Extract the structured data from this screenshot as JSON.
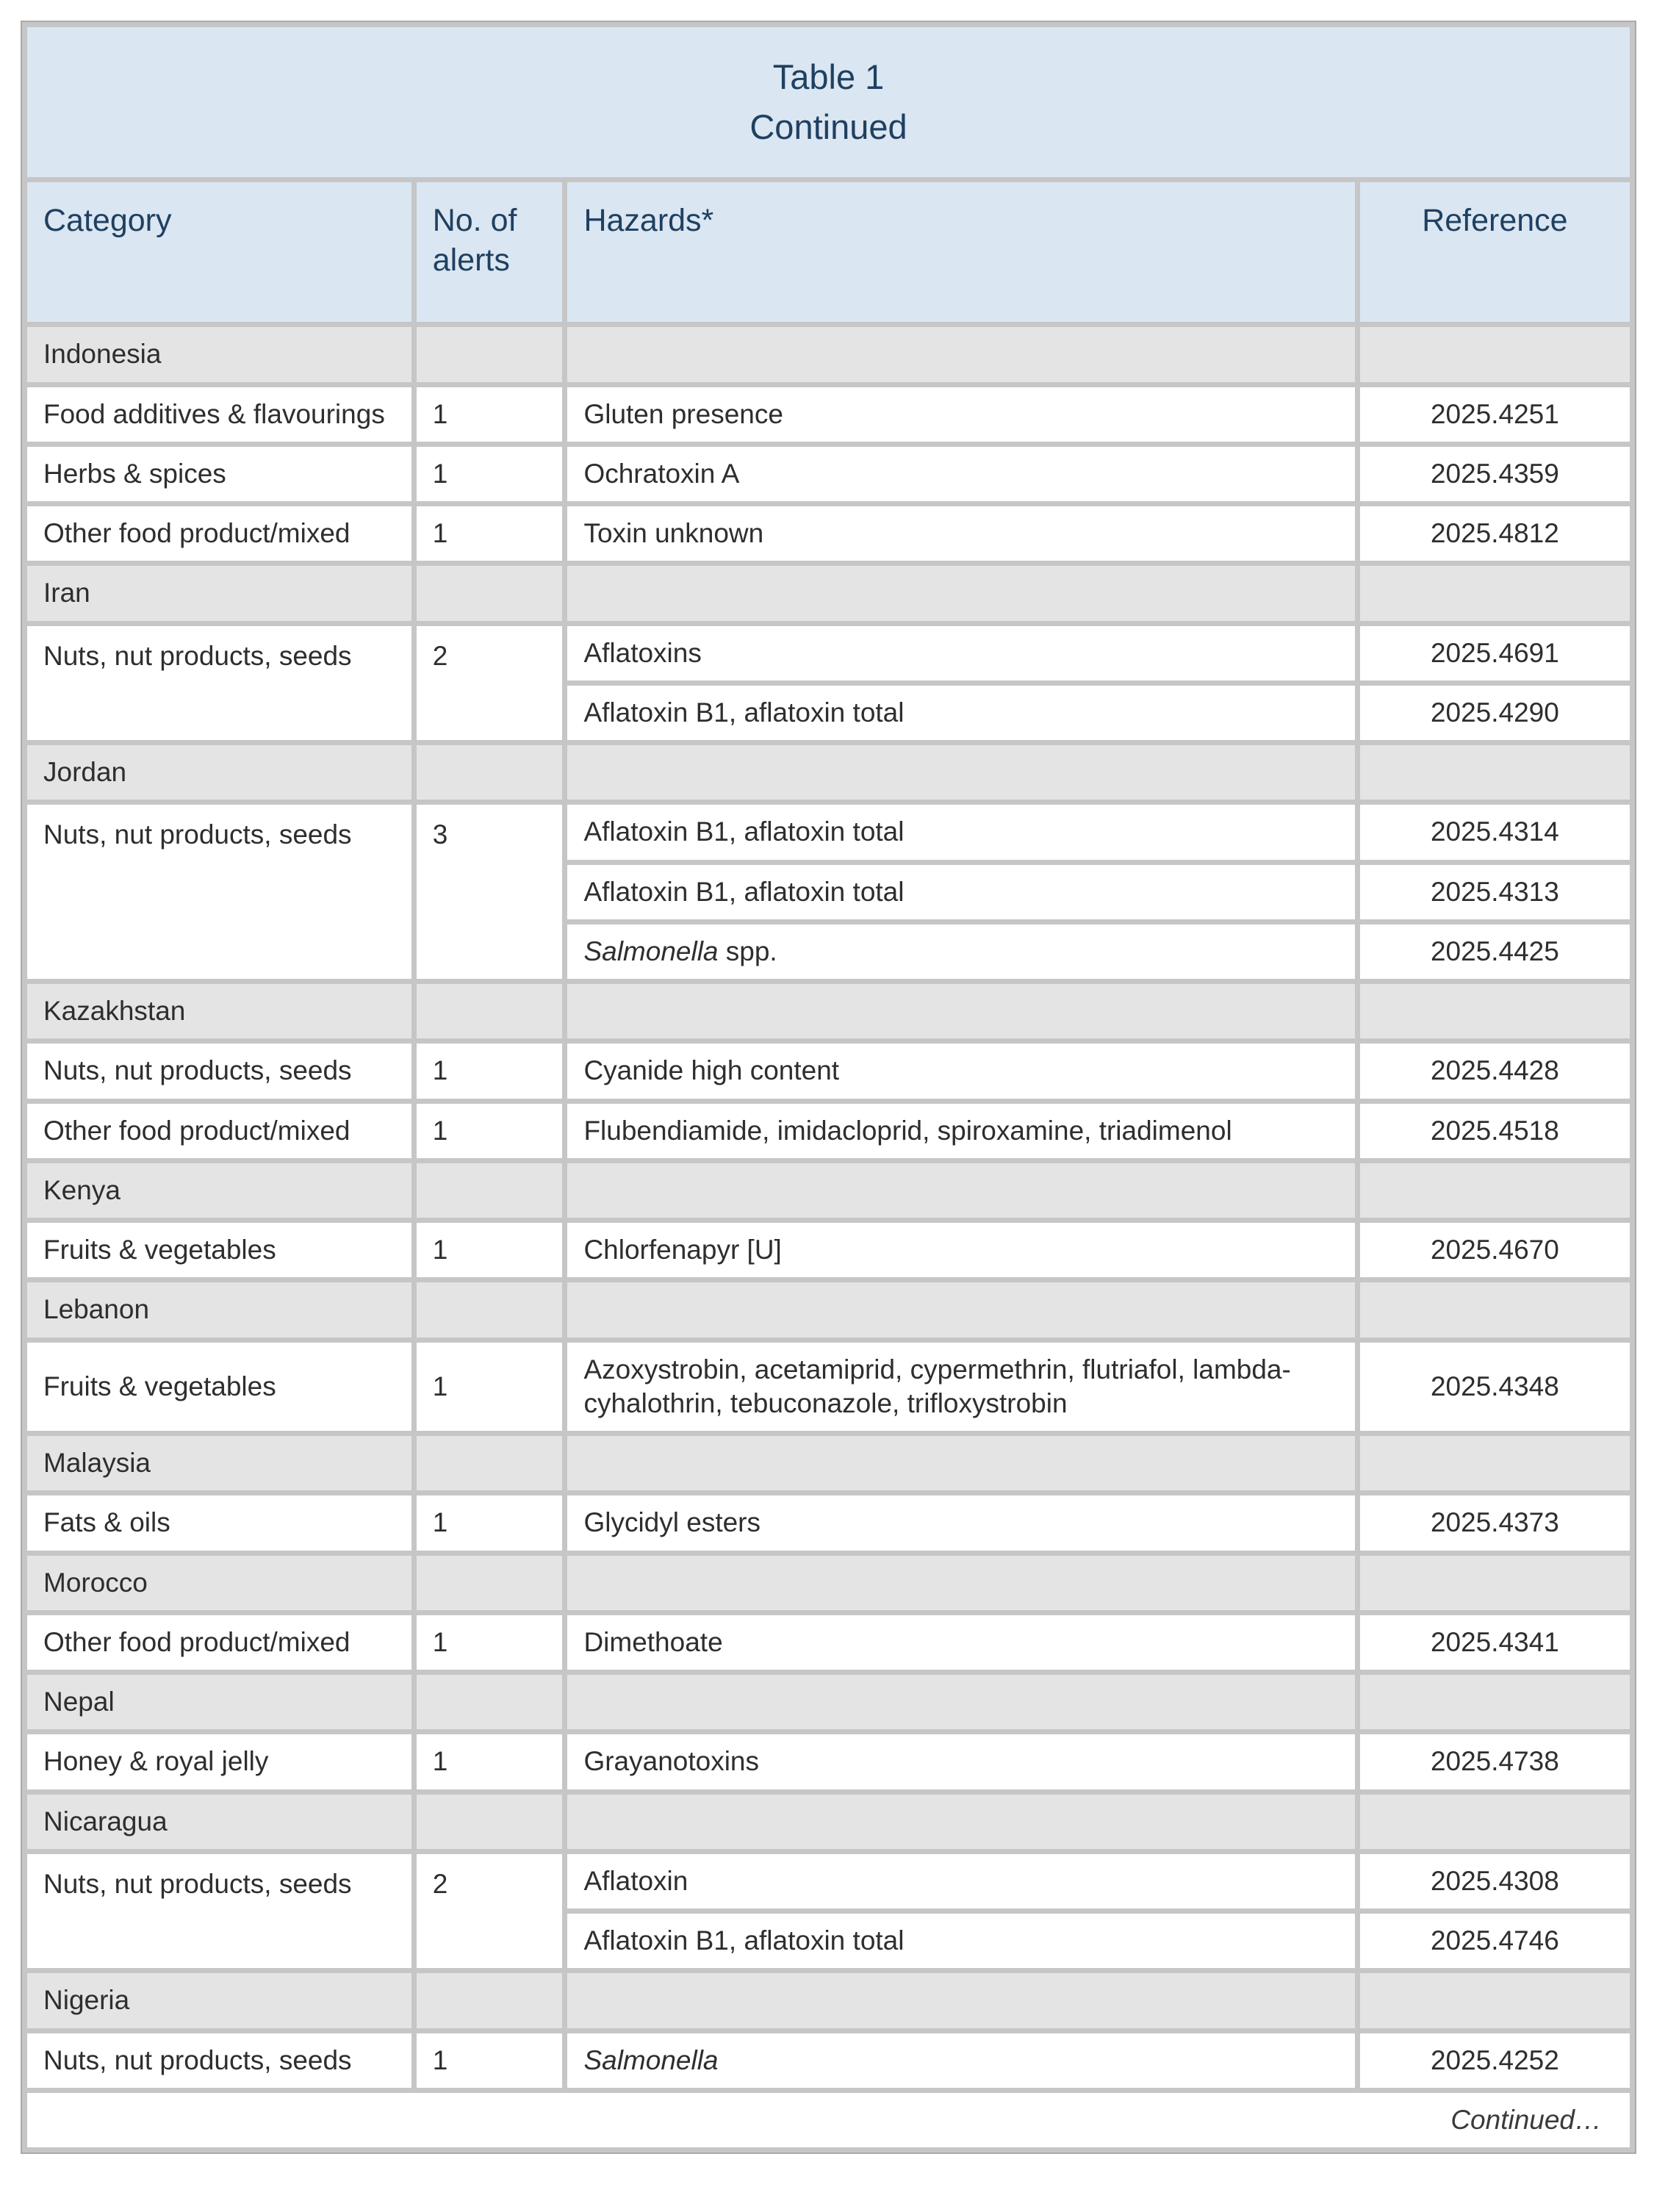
{
  "colors": {
    "accent_bg": "#dae6f2",
    "accent_text": "#1f4060",
    "section_bg": "#e4e4e4",
    "grid": "#c6c6c6",
    "body_text": "#2e2e2e"
  },
  "table": {
    "title_lines": [
      "Table 1",
      "Continued"
    ],
    "columns": [
      "Category",
      "No. of alerts",
      "Hazards*",
      "Reference"
    ],
    "footer": "Continued…",
    "groups": [
      {
        "country": "Indonesia",
        "entries": [
          {
            "category": "Food additives & flavourings",
            "alerts": "1",
            "hazards": [
              {
                "segments": [
                  {
                    "t": "Gluten presence",
                    "i": false
                  }
                ],
                "ref": "2025.4251"
              }
            ]
          },
          {
            "category": "Herbs & spices",
            "alerts": "1",
            "hazards": [
              {
                "segments": [
                  {
                    "t": "Ochratoxin A",
                    "i": false
                  }
                ],
                "ref": "2025.4359"
              }
            ]
          },
          {
            "category": "Other food product/mixed",
            "alerts": "1",
            "hazards": [
              {
                "segments": [
                  {
                    "t": "Toxin unknown",
                    "i": false
                  }
                ],
                "ref": "2025.4812"
              }
            ]
          }
        ]
      },
      {
        "country": "Iran",
        "entries": [
          {
            "category": "Nuts, nut products, seeds",
            "alerts": "2",
            "hazards": [
              {
                "segments": [
                  {
                    "t": "Aflatoxins",
                    "i": false
                  }
                ],
                "ref": "2025.4691"
              },
              {
                "segments": [
                  {
                    "t": "Aflatoxin B1, aflatoxin total",
                    "i": false
                  }
                ],
                "ref": "2025.4290"
              }
            ]
          }
        ]
      },
      {
        "country": "Jordan",
        "entries": [
          {
            "category": "Nuts, nut products, seeds",
            "alerts": "3",
            "hazards": [
              {
                "segments": [
                  {
                    "t": "Aflatoxin B1, aflatoxin total",
                    "i": false
                  }
                ],
                "ref": "2025.4314"
              },
              {
                "segments": [
                  {
                    "t": "Aflatoxin B1, aflatoxin total",
                    "i": false
                  }
                ],
                "ref": "2025.4313"
              },
              {
                "segments": [
                  {
                    "t": "Salmonella",
                    "i": true
                  },
                  {
                    "t": " spp.",
                    "i": false
                  }
                ],
                "ref": "2025.4425"
              }
            ]
          }
        ]
      },
      {
        "country": "Kazakhstan",
        "entries": [
          {
            "category": "Nuts, nut products, seeds",
            "alerts": "1",
            "hazards": [
              {
                "segments": [
                  {
                    "t": "Cyanide high content",
                    "i": false
                  }
                ],
                "ref": "2025.4428"
              }
            ]
          },
          {
            "category": "Other food product/mixed",
            "alerts": "1",
            "hazards": [
              {
                "segments": [
                  {
                    "t": "Flubendiamide, imidacloprid, spiroxamine, triadimenol",
                    "i": false
                  }
                ],
                "ref": "2025.4518"
              }
            ]
          }
        ]
      },
      {
        "country": "Kenya",
        "entries": [
          {
            "category": "Fruits & vegetables",
            "alerts": "1",
            "hazards": [
              {
                "segments": [
                  {
                    "t": "Chlorfenapyr [U]",
                    "i": false
                  }
                ],
                "ref": "2025.4670"
              }
            ]
          }
        ]
      },
      {
        "country": "Lebanon",
        "entries": [
          {
            "category": "Fruits & vegetables",
            "alerts": "1",
            "hazards": [
              {
                "segments": [
                  {
                    "t": "Azoxystrobin, acetamiprid, cypermethrin, flutriafol, lambda-cyhalothrin, tebuconazole, trifloxystrobin",
                    "i": false
                  }
                ],
                "ref": "2025.4348"
              }
            ]
          }
        ]
      },
      {
        "country": "Malaysia",
        "entries": [
          {
            "category": "Fats & oils",
            "alerts": "1",
            "hazards": [
              {
                "segments": [
                  {
                    "t": "Glycidyl esters",
                    "i": false
                  }
                ],
                "ref": "2025.4373"
              }
            ]
          }
        ]
      },
      {
        "country": "Morocco",
        "entries": [
          {
            "category": "Other food product/mixed",
            "alerts": "1",
            "hazards": [
              {
                "segments": [
                  {
                    "t": "Dimethoate",
                    "i": false
                  }
                ],
                "ref": "2025.4341"
              }
            ]
          }
        ]
      },
      {
        "country": "Nepal",
        "entries": [
          {
            "category": "Honey & royal jelly",
            "alerts": "1",
            "hazards": [
              {
                "segments": [
                  {
                    "t": "Grayanotoxins",
                    "i": false
                  }
                ],
                "ref": "2025.4738"
              }
            ]
          }
        ]
      },
      {
        "country": "Nicaragua",
        "entries": [
          {
            "category": "Nuts, nut products, seeds",
            "alerts": "2",
            "hazards": [
              {
                "segments": [
                  {
                    "t": "Aflatoxin",
                    "i": false
                  }
                ],
                "ref": "2025.4308"
              },
              {
                "segments": [
                  {
                    "t": "Aflatoxin B1, aflatoxin total",
                    "i": false
                  }
                ],
                "ref": "2025.4746"
              }
            ]
          }
        ]
      },
      {
        "country": "Nigeria",
        "entries": [
          {
            "category": "Nuts, nut products, seeds",
            "alerts": "1",
            "hazards": [
              {
                "segments": [
                  {
                    "t": "Salmonella",
                    "i": true
                  }
                ],
                "ref": "2025.4252"
              }
            ]
          }
        ]
      }
    ]
  }
}
